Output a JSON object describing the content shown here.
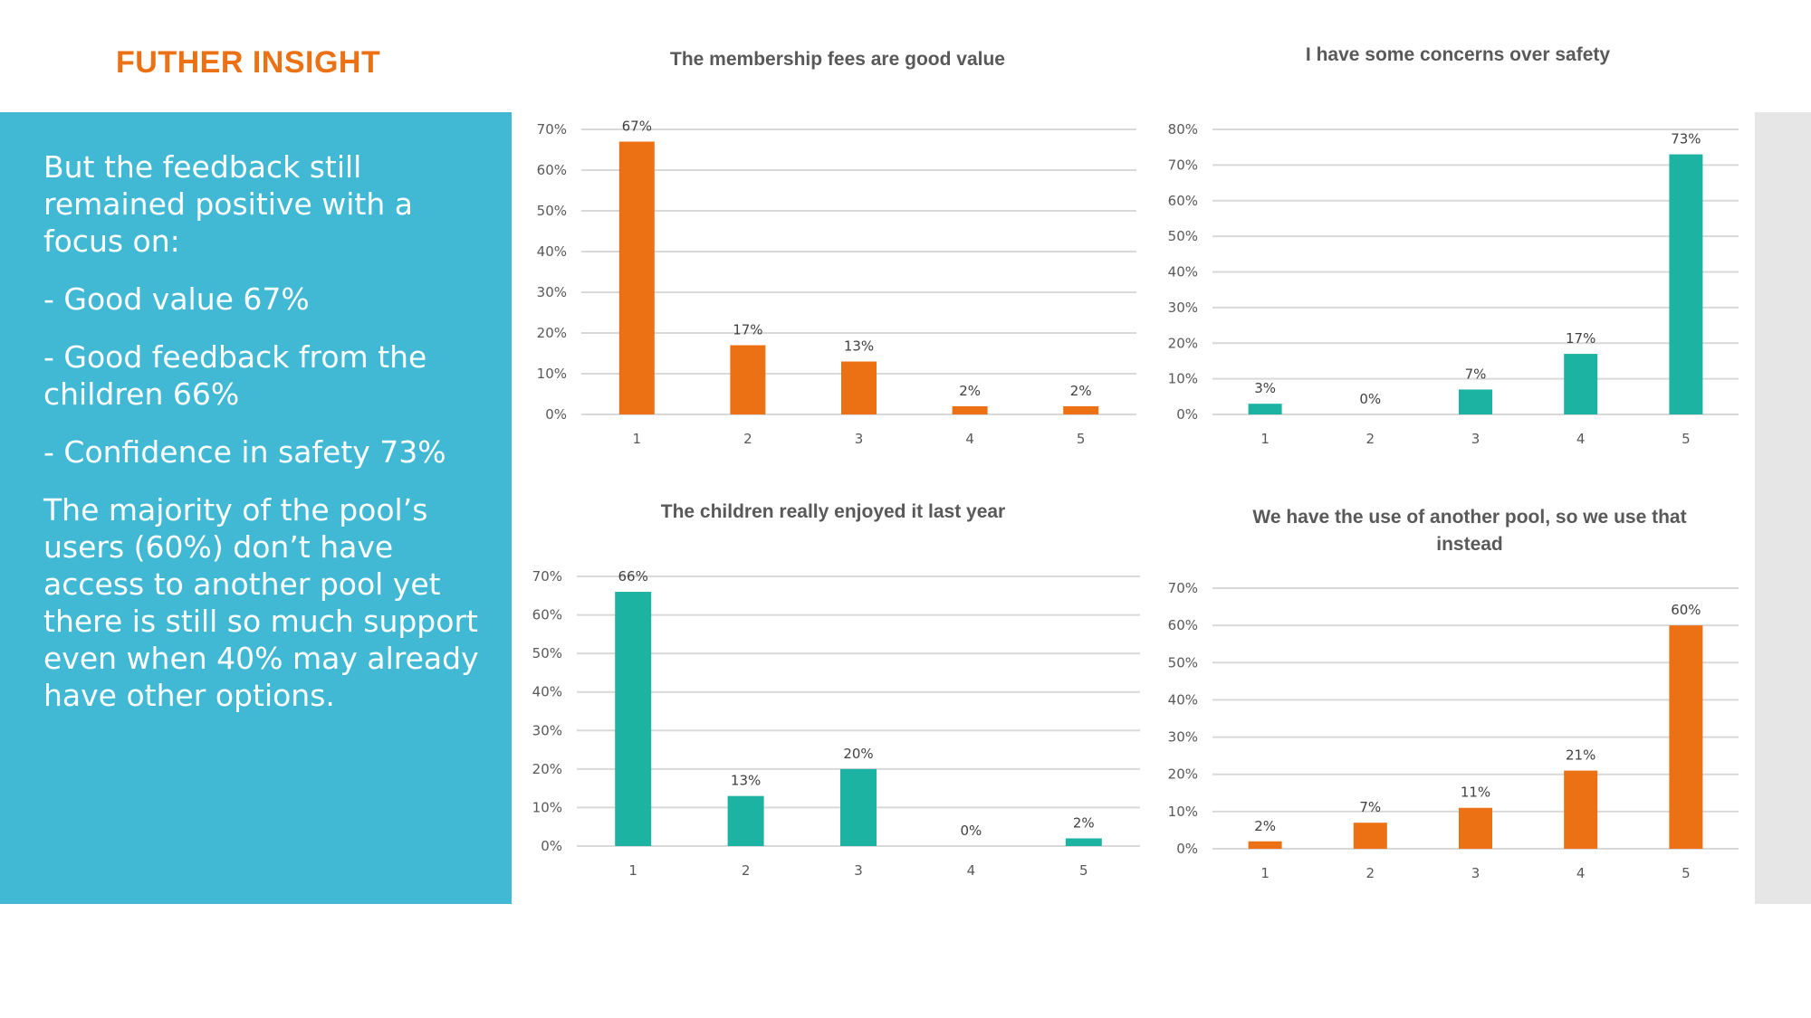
{
  "slide": {
    "title": "FUTHER INSIGHT",
    "paragraphs": [
      "But the feedback still remained positive with a focus on:",
      "- Good value 67%",
      "- Good feedback from the children 66%",
      "- Confidence in safety 73%",
      "The majority of the pool’s users (60%) don’t have access to another pool yet there is still so much support even when 40% may already have other options."
    ]
  },
  "colors": {
    "orange": "#ec7014",
    "teal": "#1db3a2",
    "panel": "#41b8d4"
  },
  "chart_data": [
    {
      "type": "bar",
      "title": "The membership fees are good value",
      "title_lines": [
        "The membership fees are good value"
      ],
      "categories": [
        "1",
        "2",
        "3",
        "4",
        "5"
      ],
      "values": [
        67,
        17,
        13,
        2,
        2
      ],
      "data_labels": [
        "67%",
        "17%",
        "13%",
        "2%",
        "2%"
      ],
      "ylim": [
        0,
        70
      ],
      "yticks": [
        "0%",
        "10%",
        "20%",
        "30%",
        "40%",
        "50%",
        "60%",
        "70%"
      ],
      "grid": true,
      "color": "#ec7014"
    },
    {
      "type": "bar",
      "title": "I have some concerns over safety",
      "title_lines": [
        "I have some concerns over safety"
      ],
      "categories": [
        "1",
        "2",
        "3",
        "4",
        "5"
      ],
      "values": [
        3,
        0,
        7,
        17,
        73
      ],
      "data_labels": [
        "3%",
        "0%",
        "7%",
        "17%",
        "73%"
      ],
      "ylim": [
        0,
        80
      ],
      "yticks": [
        "0%",
        "10%",
        "20%",
        "30%",
        "40%",
        "50%",
        "60%",
        "70%",
        "80%"
      ],
      "grid": true,
      "color": "#1db3a2"
    },
    {
      "type": "bar",
      "title": "The children really enjoyed it last year",
      "title_lines": [
        "The children really enjoyed it last year"
      ],
      "categories": [
        "1",
        "2",
        "3",
        "4",
        "5"
      ],
      "values": [
        66,
        13,
        20,
        0,
        2
      ],
      "data_labels": [
        "66%",
        "13%",
        "20%",
        "0%",
        "2%"
      ],
      "ylim": [
        0,
        70
      ],
      "yticks": [
        "0%",
        "10%",
        "20%",
        "30%",
        "40%",
        "50%",
        "60%",
        "70%"
      ],
      "grid": true,
      "color": "#1db3a2"
    },
    {
      "type": "bar",
      "title": "We have the use of another pool, so we use that instead",
      "title_lines": [
        "We have the use of another pool, so we use that",
        "instead"
      ],
      "categories": [
        "1",
        "2",
        "3",
        "4",
        "5"
      ],
      "values": [
        2,
        7,
        11,
        21,
        60
      ],
      "data_labels": [
        "2%",
        "7%",
        "11%",
        "21%",
        "60%"
      ],
      "ylim": [
        0,
        70
      ],
      "yticks": [
        "0%",
        "10%",
        "20%",
        "30%",
        "40%",
        "50%",
        "60%",
        "70%"
      ],
      "grid": true,
      "color": "#ec7014"
    }
  ]
}
